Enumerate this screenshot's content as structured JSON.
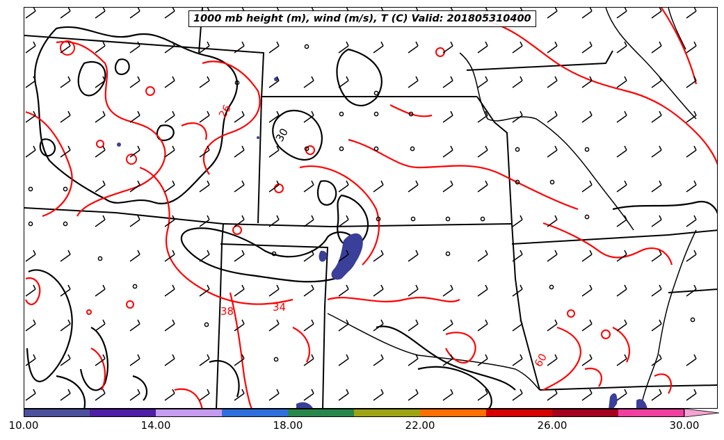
{
  "title": "1000 mb height (m), wind (m/s), T (C) Valid: 201805310400",
  "colorbar": {
    "tick_labels": [
      "10.00",
      "14.00",
      "18.00",
      "22.00",
      "26.00",
      "30.00"
    ],
    "colors": [
      "#4b4f9c",
      "#4e1ea6",
      "#c59bf0",
      "#2f6fdd",
      "#27874a",
      "#9ea514",
      "#ff6f00",
      "#d60000",
      "#a3001d",
      "#ef3f9f",
      "#f4a3d3"
    ]
  },
  "contour_labels": {
    "red": [
      "26",
      "38",
      "34",
      "60"
    ],
    "black": [
      "30"
    ]
  },
  "colors": {
    "temperature_contour": "#ff0000",
    "height_contour": "#000000",
    "boundaries": "#000000",
    "shading": "#3a3f9a"
  }
}
